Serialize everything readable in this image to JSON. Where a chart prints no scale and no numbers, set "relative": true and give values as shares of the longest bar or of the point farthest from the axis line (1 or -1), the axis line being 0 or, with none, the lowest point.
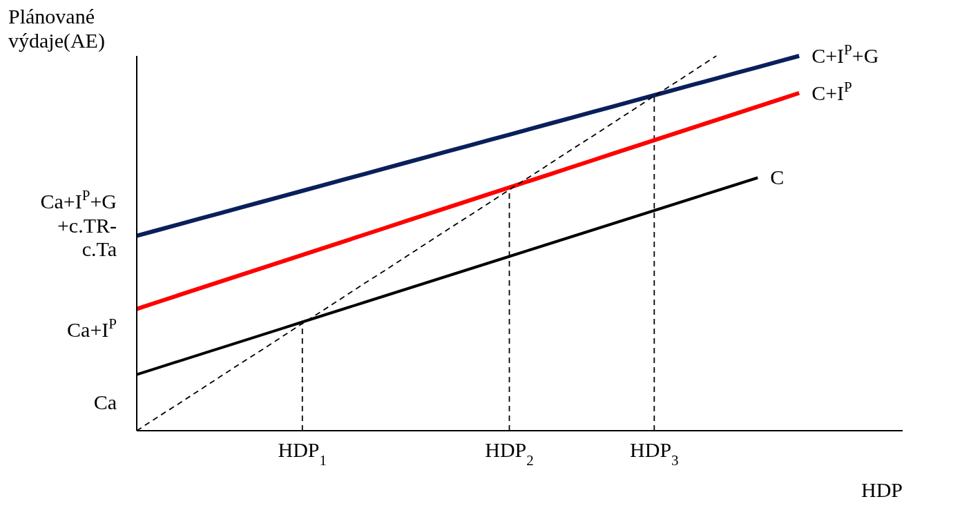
{
  "chart_data": {
    "type": "line",
    "relative": true,
    "ylabel": "Plánované výdaje(AE)",
    "xlabel": "HDP",
    "marker": "none",
    "categories": [
      null,
      null,
      null,
      null,
      null,
      null,
      null,
      null,
      "HDP$_{1}$",
      null,
      null,
      null,
      null,
      null,
      null,
      null,
      null,
      null,
      "HDP$_{2}$",
      null,
      null,
      null,
      null,
      null,
      null,
      "HDP$_{3}$",
      null,
      null,
      null,
      null,
      null,
      null,
      null,
      null,
      null,
      null,
      null,
      null
    ],
    "series": [
      {
        "name": "C+I$^{P}$+G",
        "color": "#0a1f5c",
        "values": [
          0.52,
          0.535,
          0.55,
          0.565,
          0.58,
          0.595,
          0.61,
          0.625,
          0.64,
          0.655,
          0.67,
          0.685,
          0.7,
          0.715,
          0.73,
          0.745,
          0.76,
          0.775,
          0.79,
          0.805,
          0.82,
          0.835,
          0.85,
          0.865,
          0.88,
          0.895,
          0.91,
          0.925,
          0.94,
          0.955,
          0.97,
          0.985,
          1.0,
          null,
          null,
          null,
          null,
          null
        ]
      },
      {
        "name": "C+I$^{P}$",
        "color": "#ff0000",
        "values": [
          0.325,
          0.343,
          0.361,
          0.379,
          0.397,
          0.415,
          0.433,
          0.451,
          0.469,
          0.487,
          0.505,
          0.523,
          0.541,
          0.559,
          0.577,
          0.595,
          0.613,
          0.631,
          0.649,
          0.667,
          0.685,
          0.703,
          0.721,
          0.739,
          0.757,
          0.775,
          0.793,
          0.811,
          0.829,
          0.847,
          0.865,
          0.883,
          0.901,
          null,
          null,
          null,
          null,
          null
        ]
      },
      {
        "name": "C",
        "color": "#000000",
        "values": [
          0.15,
          0.1675,
          0.185,
          0.2025,
          0.22,
          0.2375,
          0.255,
          0.2725,
          0.29,
          0.3075,
          0.325,
          0.3425,
          0.36,
          0.3775,
          0.395,
          0.4125,
          0.43,
          0.4475,
          0.465,
          0.4825,
          0.5,
          0.5175,
          0.535,
          0.5525,
          0.57,
          0.5875,
          0.605,
          0.6225,
          0.64,
          0.6575,
          0.675,
          null,
          null,
          null,
          null,
          null,
          null,
          null
        ]
      },
      {
        "color": "#000000",
        "line_style": "dashed",
        "values": [
          0,
          0.036,
          0.071,
          0.107,
          0.143,
          0.179,
          0.214,
          0.25,
          0.286,
          0.321,
          0.357,
          0.393,
          0.428,
          0.464,
          0.5,
          0.536,
          0.571,
          0.607,
          0.643,
          0.678,
          0.714,
          0.75,
          0.785,
          0.821,
          0.857,
          0.893,
          0.928,
          0.964,
          1.0,
          null,
          null,
          null,
          null,
          null,
          null,
          null,
          null,
          null
        ]
      }
    ],
    "ref_lines": [
      {
        "axis": "x",
        "value": "HDP$_{1}$",
        "color": "#000000",
        "line_style": "dashed"
      },
      {
        "axis": "x",
        "value": "HDP$_{2}$",
        "color": "#000000",
        "line_style": "dashed"
      },
      {
        "axis": "x",
        "value": "HDP$_{3}$",
        "color": "#000000",
        "line_style": "dashed"
      }
    ],
    "annotations": [
      "Ca+I$^{P}$+G +c.TR- c.Ta",
      "Ca+I$^{P}$",
      "Ca"
    ]
  }
}
